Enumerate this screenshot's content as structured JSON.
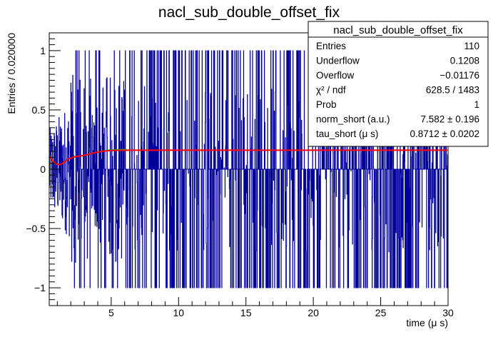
{
  "chart_data": {
    "type": "histogram",
    "title": "nacl_sub_double_offset_fix",
    "xlabel": "time (μ s)",
    "ylabel": "Entries / 0.020000",
    "xlim": [
      0.4,
      30
    ],
    "ylim": [
      -1.15,
      1.15
    ],
    "x_ticks": [
      5,
      10,
      15,
      20,
      25,
      30
    ],
    "x_tick_labels": [
      "5",
      "10",
      "15",
      "20",
      "25",
      "30"
    ],
    "y_ticks": [
      -1,
      -0.5,
      0,
      0.5,
      1
    ],
    "y_tick_labels": [
      "−1",
      "−0.5",
      "0",
      "0.5",
      "1"
    ],
    "bin_width": 0.02,
    "histogram_color": "#000099",
    "fit_color": "#ff0000",
    "fit_overlay_color": "#00cc00",
    "stats": {
      "name": "nacl_sub_double_offset_fix",
      "rows": [
        {
          "label": "Entries",
          "value": "110"
        },
        {
          "label": "Underflow",
          "value": "0.1208"
        },
        {
          "label": "Overflow",
          "value": "−0.01176"
        },
        {
          "label": "χ² / ndf",
          "value": "628.5 / 1483"
        },
        {
          "label": "Prob",
          "value": "1"
        },
        {
          "label": "norm_short (a.u.)",
          "value": "7.582 ± 0.196"
        },
        {
          "label": "tau_short (μ s)",
          "value": "0.8712 ± 0.0202"
        }
      ]
    }
  }
}
